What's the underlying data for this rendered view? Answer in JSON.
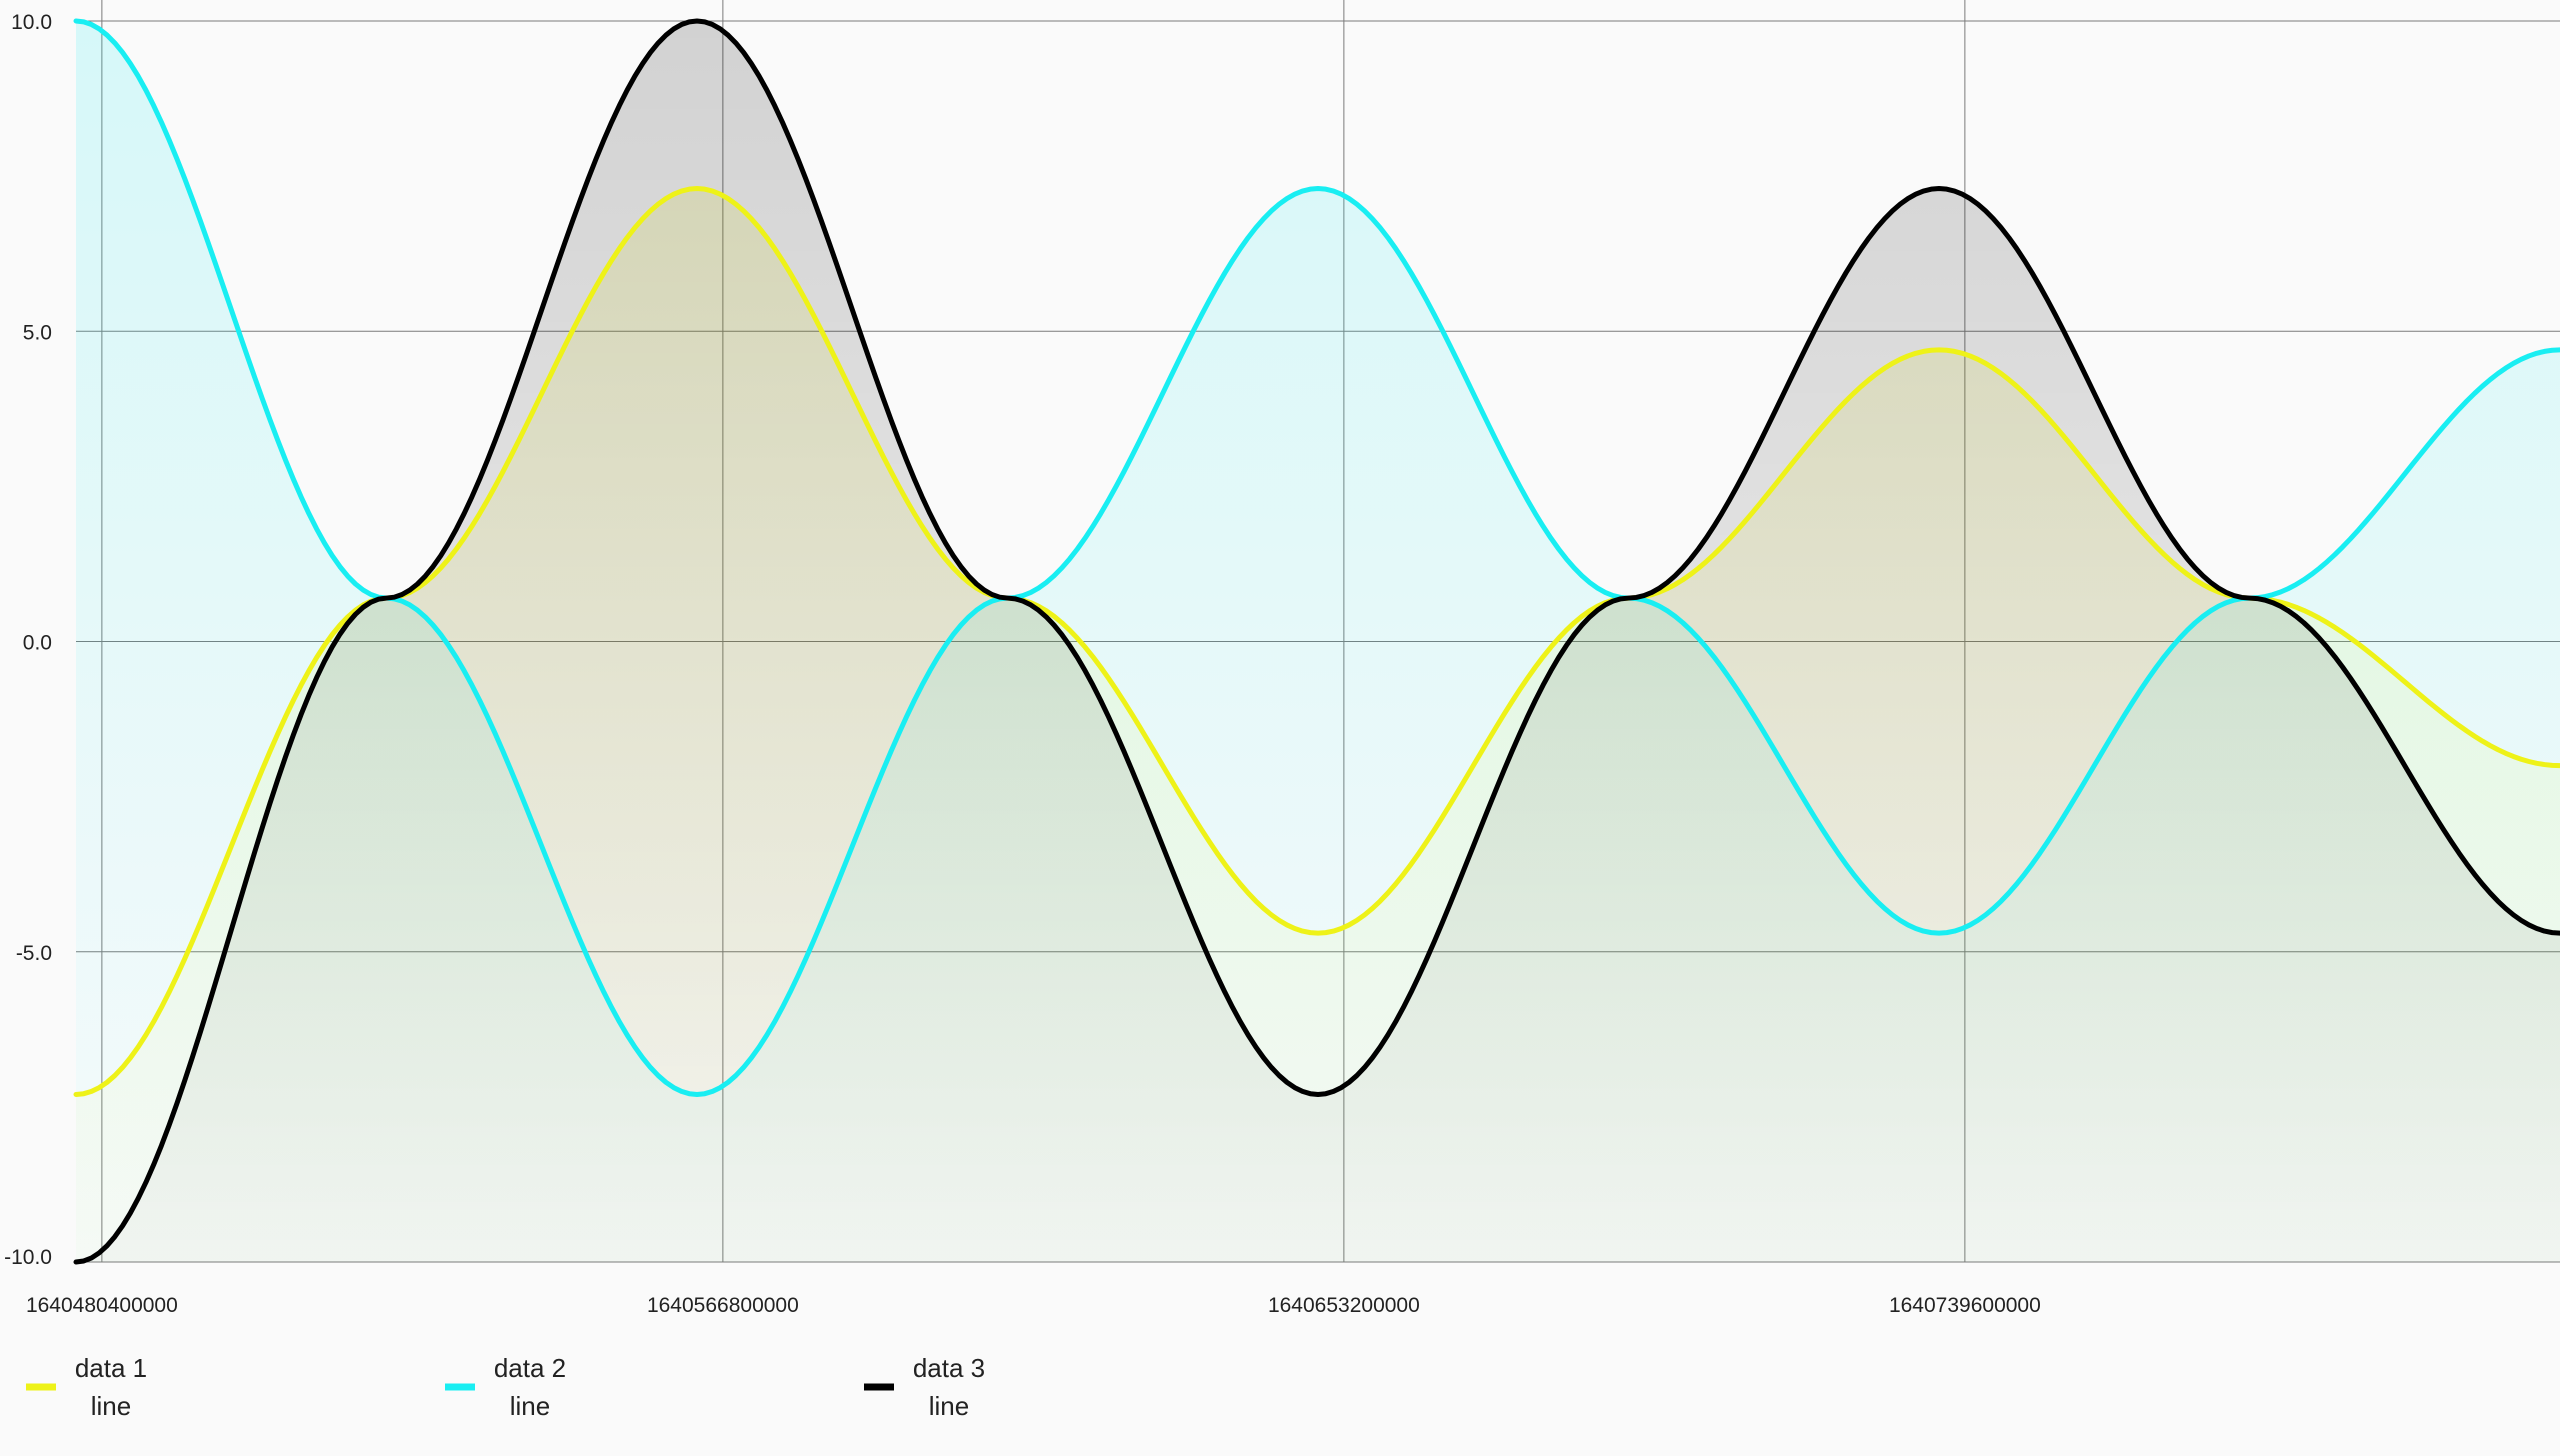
{
  "chart_data": {
    "type": "area",
    "x_tick_labels": [
      "1640480400000",
      "1640566800000",
      "1640653200000",
      "1640739600000"
    ],
    "y_tick_labels": [
      "10.0",
      "5.0",
      "0.0",
      "-5.0",
      "-10.0"
    ],
    "ylim": [
      -10,
      10
    ],
    "xlim": [
      1640476800000,
      1640822400000
    ],
    "grid": true,
    "legend_position": "bottom-left",
    "series": [
      {
        "name": "data 1",
        "name_line2": "line",
        "color": "#eef218",
        "x": [
          1640476800000,
          1640520000000,
          1640563200000,
          1640606400000,
          1640649600000,
          1640692800000,
          1640736000000,
          1640779200000,
          1640822400000
        ],
        "values": [
          -7.3,
          0.7,
          7.3,
          0.7,
          -4.7,
          0.7,
          4.7,
          0.7,
          -2.0
        ]
      },
      {
        "name": "data 2",
        "name_line2": "line",
        "color": "#19eef2",
        "x": [
          1640476800000,
          1640520000000,
          1640563200000,
          1640606400000,
          1640649600000,
          1640692800000,
          1640736000000,
          1640779200000,
          1640822400000
        ],
        "values": [
          10.0,
          0.7,
          -7.3,
          0.7,
          7.3,
          0.7,
          -4.7,
          0.7,
          4.7
        ]
      },
      {
        "name": "data 3",
        "name_line2": "line",
        "color": "#000000",
        "x": [
          1640476800000,
          1640520000000,
          1640563200000,
          1640606400000,
          1640649600000,
          1640692800000,
          1640736000000,
          1640779200000,
          1640822400000
        ],
        "values": [
          -10.0,
          0.7,
          10.0,
          0.7,
          -7.3,
          0.7,
          7.3,
          0.7,
          -4.7
        ]
      }
    ]
  }
}
